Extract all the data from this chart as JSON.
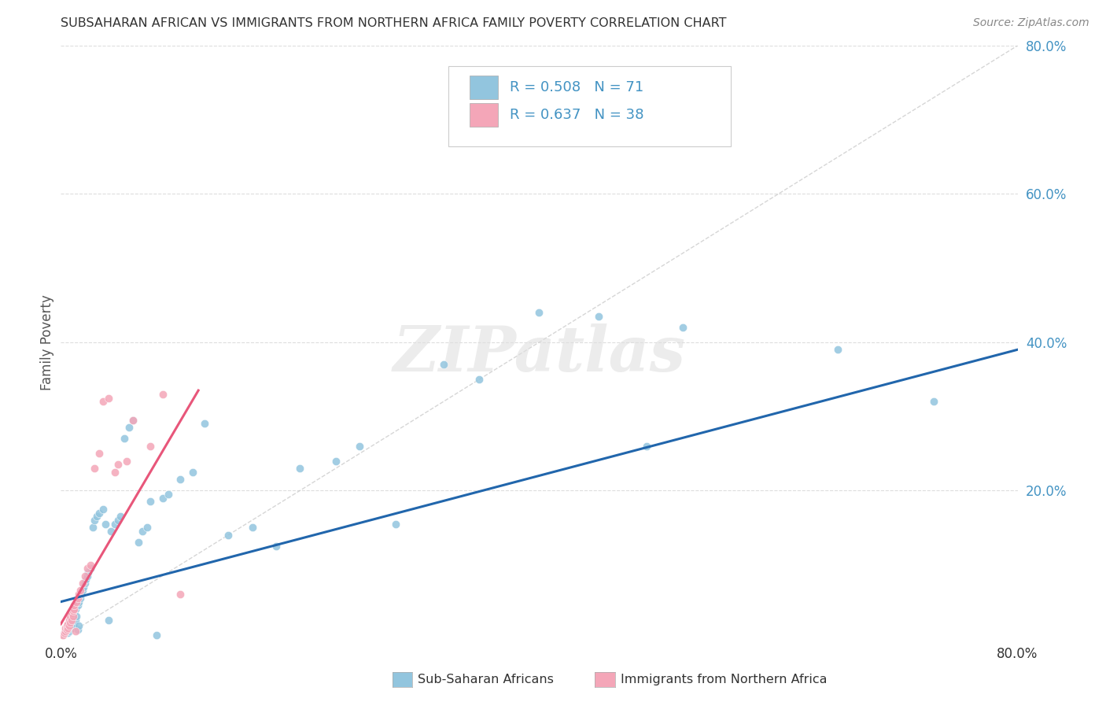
{
  "title": "SUBSAHARAN AFRICAN VS IMMIGRANTS FROM NORTHERN AFRICA FAMILY POVERTY CORRELATION CHART",
  "source": "Source: ZipAtlas.com",
  "ylabel": "Family Poverty",
  "legend_label1": "Sub-Saharan Africans",
  "legend_label2": "Immigrants from Northern Africa",
  "legend_R1": "R = 0.508",
  "legend_N1": "N = 71",
  "legend_R2": "R = 0.637",
  "legend_N2": "N = 38",
  "color_blue": "#92c5de",
  "color_pink": "#f4a6b8",
  "color_blue_text": "#4393c3",
  "color_line_blue": "#2166ac",
  "color_line_pink": "#e8567a",
  "color_diagonal": "#cccccc",
  "xlim": [
    0.0,
    0.8
  ],
  "ylim": [
    0.0,
    0.8
  ],
  "watermark": "ZIPatlas",
  "blue_line_x": [
    0.0,
    0.8
  ],
  "blue_line_y": [
    0.05,
    0.39
  ],
  "pink_line_x": [
    0.0,
    0.115
  ],
  "pink_line_y": [
    0.02,
    0.335
  ],
  "blue_x": [
    0.003,
    0.004,
    0.005,
    0.005,
    0.006,
    0.006,
    0.007,
    0.007,
    0.008,
    0.008,
    0.009,
    0.009,
    0.01,
    0.01,
    0.011,
    0.011,
    0.012,
    0.012,
    0.013,
    0.014,
    0.014,
    0.015,
    0.015,
    0.016,
    0.017,
    0.018,
    0.019,
    0.02,
    0.021,
    0.022,
    0.023,
    0.025,
    0.027,
    0.028,
    0.03,
    0.032,
    0.035,
    0.037,
    0.04,
    0.042,
    0.045,
    0.048,
    0.05,
    0.053,
    0.057,
    0.06,
    0.065,
    0.068,
    0.072,
    0.075,
    0.08,
    0.085,
    0.09,
    0.1,
    0.11,
    0.12,
    0.14,
    0.16,
    0.18,
    0.2,
    0.23,
    0.25,
    0.28,
    0.32,
    0.35,
    0.4,
    0.45,
    0.49,
    0.52,
    0.65,
    0.73
  ],
  "blue_y": [
    0.008,
    0.01,
    0.012,
    0.015,
    0.008,
    0.018,
    0.01,
    0.02,
    0.012,
    0.025,
    0.015,
    0.022,
    0.018,
    0.03,
    0.02,
    0.035,
    0.025,
    0.04,
    0.03,
    0.012,
    0.045,
    0.018,
    0.05,
    0.055,
    0.06,
    0.065,
    0.07,
    0.075,
    0.08,
    0.085,
    0.09,
    0.095,
    0.15,
    0.16,
    0.165,
    0.17,
    0.175,
    0.155,
    0.025,
    0.145,
    0.155,
    0.16,
    0.165,
    0.27,
    0.285,
    0.295,
    0.13,
    0.145,
    0.15,
    0.185,
    0.005,
    0.19,
    0.195,
    0.215,
    0.225,
    0.29,
    0.14,
    0.15,
    0.125,
    0.23,
    0.24,
    0.26,
    0.155,
    0.37,
    0.35,
    0.44,
    0.435,
    0.26,
    0.42,
    0.39,
    0.32
  ],
  "pink_x": [
    0.002,
    0.003,
    0.004,
    0.004,
    0.005,
    0.005,
    0.006,
    0.006,
    0.007,
    0.007,
    0.008,
    0.008,
    0.009,
    0.009,
    0.01,
    0.01,
    0.011,
    0.011,
    0.012,
    0.013,
    0.014,
    0.015,
    0.016,
    0.018,
    0.02,
    0.022,
    0.025,
    0.028,
    0.032,
    0.035,
    0.04,
    0.045,
    0.048,
    0.055,
    0.06,
    0.075,
    0.085,
    0.1
  ],
  "pink_y": [
    0.005,
    0.008,
    0.01,
    0.015,
    0.012,
    0.018,
    0.015,
    0.02,
    0.018,
    0.025,
    0.022,
    0.03,
    0.025,
    0.035,
    0.03,
    0.038,
    0.04,
    0.045,
    0.01,
    0.05,
    0.055,
    0.06,
    0.065,
    0.075,
    0.085,
    0.095,
    0.1,
    0.23,
    0.25,
    0.32,
    0.325,
    0.225,
    0.235,
    0.24,
    0.295,
    0.26,
    0.33,
    0.06
  ],
  "yticks_right": [
    0.2,
    0.4,
    0.6,
    0.8
  ],
  "ytick_labels_right": [
    "20.0%",
    "40.0%",
    "60.0%",
    "80.0%"
  ],
  "xticks": [
    0.0,
    0.8
  ],
  "xtick_labels": [
    "0.0%",
    "80.0%"
  ]
}
